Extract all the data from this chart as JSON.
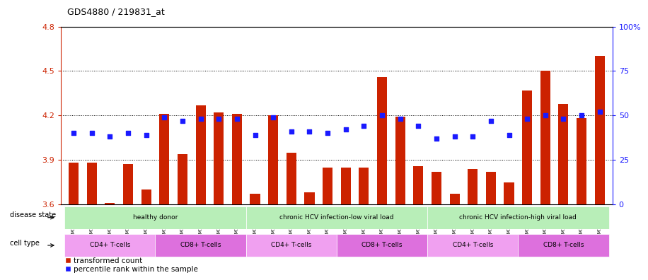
{
  "title": "GDS4880 / 219831_at",
  "samples": [
    "GSM1210739",
    "GSM1210740",
    "GSM1210741",
    "GSM1210742",
    "GSM1210743",
    "GSM1210754",
    "GSM1210755",
    "GSM1210756",
    "GSM1210757",
    "GSM1210758",
    "GSM1210745",
    "GSM1210750",
    "GSM1210751",
    "GSM1210752",
    "GSM1210753",
    "GSM1210760",
    "GSM1210765",
    "GSM1210766",
    "GSM1210767",
    "GSM1210768",
    "GSM1210744",
    "GSM1210746",
    "GSM1210747",
    "GSM1210748",
    "GSM1210749",
    "GSM1210759",
    "GSM1210761",
    "GSM1210762",
    "GSM1210763",
    "GSM1210764"
  ],
  "transformed_count": [
    3.88,
    3.88,
    3.61,
    3.87,
    3.7,
    4.21,
    3.94,
    4.27,
    4.22,
    4.21,
    3.67,
    4.2,
    3.95,
    3.68,
    3.85,
    3.85,
    3.85,
    4.46,
    4.19,
    3.86,
    3.82,
    3.67,
    3.84,
    3.82,
    3.75,
    4.37,
    4.5,
    4.28,
    4.18,
    4.6
  ],
  "percentile_rank": [
    40,
    40,
    38,
    40,
    39,
    49,
    47,
    48,
    48,
    48,
    39,
    49,
    41,
    41,
    40,
    42,
    44,
    50,
    48,
    44,
    37,
    38,
    38,
    47,
    39,
    48,
    50,
    48,
    50,
    52
  ],
  "ylim_left": [
    3.6,
    4.8
  ],
  "ylim_right": [
    0,
    100
  ],
  "yticks_left": [
    3.6,
    3.9,
    4.2,
    4.5,
    4.8
  ],
  "ytick_labels_left": [
    "3.6",
    "3.9",
    "4.2",
    "4.5",
    "4.8"
  ],
  "yticks_right": [
    0,
    25,
    50,
    75,
    100
  ],
  "ytick_labels_right": [
    "0",
    "25",
    "50",
    "75",
    "100%"
  ],
  "bar_color": "#cc2200",
  "dot_color": "#1a1aff",
  "bar_bottom": 3.6,
  "ds_groups": [
    {
      "label": "healthy donor",
      "start": 0,
      "end": 9,
      "color": "#b8eeb8"
    },
    {
      "label": "chronic HCV infection-low viral load",
      "start": 10,
      "end": 19,
      "color": "#b8eeb8"
    },
    {
      "label": "chronic HCV infection-high viral load",
      "start": 20,
      "end": 29,
      "color": "#b8eeb8"
    }
  ],
  "ct_groups": [
    {
      "label": "CD4+ T-cells",
      "start": 0,
      "end": 4,
      "color": "#f0a0f0"
    },
    {
      "label": "CD8+ T-cells",
      "start": 5,
      "end": 9,
      "color": "#dd70dd"
    },
    {
      "label": "CD4+ T-cells",
      "start": 10,
      "end": 14,
      "color": "#f0a0f0"
    },
    {
      "label": "CD8+ T-cells",
      "start": 15,
      "end": 19,
      "color": "#dd70dd"
    },
    {
      "label": "CD4+ T-cells",
      "start": 20,
      "end": 24,
      "color": "#f0a0f0"
    },
    {
      "label": "CD8+ T-cells",
      "start": 25,
      "end": 29,
      "color": "#dd70dd"
    }
  ],
  "disease_state_label": "disease state",
  "cell_type_label": "cell type",
  "legend_bar_label": "transformed count",
  "legend_dot_label": "percentile rank within the sample",
  "xtick_bg_color": "#d8d8d8",
  "spine_color_left": "#cc2200",
  "spine_color_right": "#1a1aff"
}
